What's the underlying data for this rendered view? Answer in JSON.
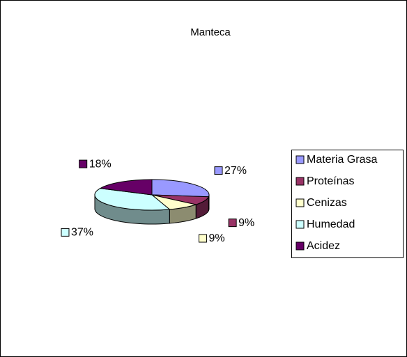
{
  "chart_data": {
    "type": "pie",
    "title": "Manteca",
    "categories": [
      "Materia Grasa",
      "Proteínas",
      "Cenizas",
      "Humedad",
      "Acidez"
    ],
    "values": [
      27,
      9,
      9,
      37,
      18
    ],
    "value_labels": [
      "27%",
      "9%",
      "9%",
      "37%",
      "18%"
    ],
    "colors": [
      "#9999ff",
      "#993366",
      "#ffffcc",
      "#ccffff",
      "#660066"
    ],
    "legend": "right"
  }
}
